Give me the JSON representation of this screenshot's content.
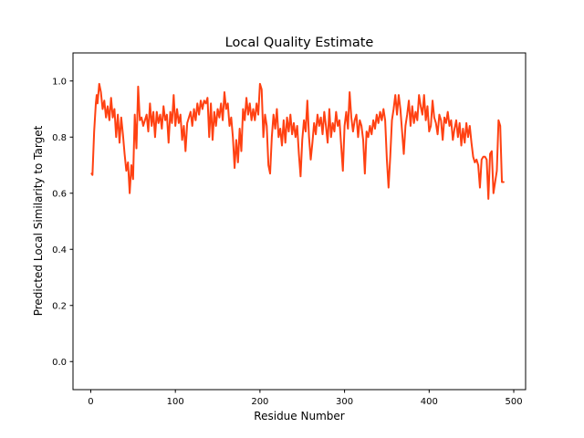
{
  "chart_data": {
    "type": "line",
    "title": "Local Quality Estimate",
    "xlabel": "Residue Number",
    "ylabel": "Predicted Local Similarity to Target",
    "xlim": [
      -21,
      514
    ],
    "ylim": [
      -0.1,
      1.1
    ],
    "xticks": [
      0,
      100,
      200,
      300,
      400,
      500
    ],
    "yticks": [
      0.0,
      0.2,
      0.4,
      0.6,
      0.8,
      1.0
    ],
    "xtick_labels": [
      "0",
      "100",
      "200",
      "300",
      "400",
      "500"
    ],
    "ytick_labels": [
      "0.0",
      "0.2",
      "0.4",
      "0.6",
      "0.8",
      "1.0"
    ],
    "grid": false,
    "series": [
      {
        "color": "#ff4112",
        "points": [
          [
            1,
            0.67
          ],
          [
            2,
            0.665
          ],
          [
            4,
            0.82
          ],
          [
            6,
            0.92
          ],
          [
            7,
            0.95
          ],
          [
            8,
            0.92
          ],
          [
            10,
            0.99
          ],
          [
            12,
            0.96
          ],
          [
            14,
            0.9
          ],
          [
            16,
            0.93
          ],
          [
            18,
            0.87
          ],
          [
            20,
            0.91
          ],
          [
            22,
            0.86
          ],
          [
            24,
            0.94
          ],
          [
            26,
            0.87
          ],
          [
            28,
            0.9
          ],
          [
            30,
            0.8
          ],
          [
            32,
            0.88
          ],
          [
            34,
            0.78
          ],
          [
            36,
            0.87
          ],
          [
            38,
            0.81
          ],
          [
            40,
            0.74
          ],
          [
            42,
            0.68
          ],
          [
            44,
            0.71
          ],
          [
            46,
            0.6
          ],
          [
            48,
            0.7
          ],
          [
            50,
            0.65
          ],
          [
            52,
            0.88
          ],
          [
            54,
            0.76
          ],
          [
            56,
            0.98
          ],
          [
            58,
            0.86
          ],
          [
            60,
            0.87
          ],
          [
            62,
            0.84
          ],
          [
            64,
            0.86
          ],
          [
            66,
            0.88
          ],
          [
            68,
            0.82
          ],
          [
            70,
            0.92
          ],
          [
            72,
            0.84
          ],
          [
            74,
            0.89
          ],
          [
            76,
            0.8
          ],
          [
            78,
            0.89
          ],
          [
            80,
            0.85
          ],
          [
            82,
            0.88
          ],
          [
            84,
            0.83
          ],
          [
            86,
            0.91
          ],
          [
            88,
            0.86
          ],
          [
            90,
            0.88
          ],
          [
            92,
            0.78
          ],
          [
            94,
            0.89
          ],
          [
            96,
            0.85
          ],
          [
            98,
            0.95
          ],
          [
            100,
            0.84
          ],
          [
            102,
            0.9
          ],
          [
            104,
            0.85
          ],
          [
            106,
            0.88
          ],
          [
            108,
            0.79
          ],
          [
            110,
            0.84
          ],
          [
            112,
            0.75
          ],
          [
            114,
            0.85
          ],
          [
            116,
            0.87
          ],
          [
            118,
            0.89
          ],
          [
            120,
            0.84
          ],
          [
            122,
            0.9
          ],
          [
            124,
            0.86
          ],
          [
            126,
            0.92
          ],
          [
            128,
            0.88
          ],
          [
            130,
            0.93
          ],
          [
            132,
            0.9
          ],
          [
            134,
            0.93
          ],
          [
            136,
            0.92
          ],
          [
            138,
            0.94
          ],
          [
            140,
            0.8
          ],
          [
            142,
            0.92
          ],
          [
            144,
            0.79
          ],
          [
            146,
            0.89
          ],
          [
            148,
            0.84
          ],
          [
            150,
            0.9
          ],
          [
            152,
            0.87
          ],
          [
            154,
            0.92
          ],
          [
            156,
            0.86
          ],
          [
            158,
            0.96
          ],
          [
            160,
            0.9
          ],
          [
            162,
            0.92
          ],
          [
            164,
            0.84
          ],
          [
            166,
            0.87
          ],
          [
            168,
            0.8
          ],
          [
            170,
            0.69
          ],
          [
            172,
            0.79
          ],
          [
            174,
            0.71
          ],
          [
            176,
            0.83
          ],
          [
            178,
            0.75
          ],
          [
            180,
            0.9
          ],
          [
            182,
            0.86
          ],
          [
            184,
            0.94
          ],
          [
            186,
            0.88
          ],
          [
            188,
            0.92
          ],
          [
            190,
            0.86
          ],
          [
            192,
            0.9
          ],
          [
            194,
            0.86
          ],
          [
            196,
            0.92
          ],
          [
            198,
            0.88
          ],
          [
            200,
            0.99
          ],
          [
            202,
            0.97
          ],
          [
            204,
            0.8
          ],
          [
            206,
            0.88
          ],
          [
            208,
            0.84
          ],
          [
            210,
            0.7
          ],
          [
            212,
            0.67
          ],
          [
            214,
            0.8
          ],
          [
            216,
            0.88
          ],
          [
            218,
            0.83
          ],
          [
            220,
            0.9
          ],
          [
            222,
            0.8
          ],
          [
            224,
            0.83
          ],
          [
            226,
            0.77
          ],
          [
            228,
            0.86
          ],
          [
            230,
            0.78
          ],
          [
            232,
            0.87
          ],
          [
            234,
            0.82
          ],
          [
            236,
            0.88
          ],
          [
            238,
            0.81
          ],
          [
            240,
            0.85
          ],
          [
            242,
            0.8
          ],
          [
            244,
            0.84
          ],
          [
            246,
            0.74
          ],
          [
            248,
            0.66
          ],
          [
            250,
            0.79
          ],
          [
            252,
            0.86
          ],
          [
            254,
            0.82
          ],
          [
            256,
            0.93
          ],
          [
            258,
            0.8
          ],
          [
            260,
            0.72
          ],
          [
            262,
            0.78
          ],
          [
            264,
            0.85
          ],
          [
            266,
            0.81
          ],
          [
            268,
            0.88
          ],
          [
            270,
            0.84
          ],
          [
            272,
            0.87
          ],
          [
            274,
            0.81
          ],
          [
            276,
            0.89
          ],
          [
            278,
            0.84
          ],
          [
            280,
            0.78
          ],
          [
            282,
            0.9
          ],
          [
            284,
            0.8
          ],
          [
            286,
            0.85
          ],
          [
            288,
            0.82
          ],
          [
            290,
            0.89
          ],
          [
            292,
            0.84
          ],
          [
            294,
            0.86
          ],
          [
            296,
            0.77
          ],
          [
            298,
            0.68
          ],
          [
            300,
            0.84
          ],
          [
            302,
            0.89
          ],
          [
            304,
            0.83
          ],
          [
            306,
            0.96
          ],
          [
            308,
            0.87
          ],
          [
            310,
            0.82
          ],
          [
            312,
            0.86
          ],
          [
            314,
            0.88
          ],
          [
            316,
            0.8
          ],
          [
            318,
            0.86
          ],
          [
            320,
            0.84
          ],
          [
            322,
            0.79
          ],
          [
            324,
            0.67
          ],
          [
            326,
            0.82
          ],
          [
            328,
            0.8
          ],
          [
            330,
            0.84
          ],
          [
            332,
            0.81
          ],
          [
            334,
            0.86
          ],
          [
            336,
            0.83
          ],
          [
            338,
            0.88
          ],
          [
            340,
            0.85
          ],
          [
            342,
            0.89
          ],
          [
            344,
            0.86
          ],
          [
            346,
            0.9
          ],
          [
            348,
            0.86
          ],
          [
            350,
            0.72
          ],
          [
            352,
            0.62
          ],
          [
            354,
            0.73
          ],
          [
            356,
            0.86
          ],
          [
            358,
            0.9
          ],
          [
            360,
            0.95
          ],
          [
            362,
            0.88
          ],
          [
            364,
            0.95
          ],
          [
            366,
            0.9
          ],
          [
            368,
            0.82
          ],
          [
            370,
            0.74
          ],
          [
            372,
            0.84
          ],
          [
            374,
            0.88
          ],
          [
            376,
            0.93
          ],
          [
            378,
            0.84
          ],
          [
            380,
            0.91
          ],
          [
            382,
            0.85
          ],
          [
            384,
            0.89
          ],
          [
            386,
            0.86
          ],
          [
            388,
            0.95
          ],
          [
            390,
            0.91
          ],
          [
            392,
            0.88
          ],
          [
            394,
            0.95
          ],
          [
            396,
            0.86
          ],
          [
            398,
            0.91
          ],
          [
            400,
            0.82
          ],
          [
            402,
            0.84
          ],
          [
            404,
            0.93
          ],
          [
            406,
            0.87
          ],
          [
            408,
            0.85
          ],
          [
            410,
            0.81
          ],
          [
            412,
            0.88
          ],
          [
            414,
            0.86
          ],
          [
            416,
            0.79
          ],
          [
            418,
            0.87
          ],
          [
            420,
            0.85
          ],
          [
            422,
            0.89
          ],
          [
            424,
            0.84
          ],
          [
            426,
            0.86
          ],
          [
            428,
            0.79
          ],
          [
            430,
            0.83
          ],
          [
            432,
            0.86
          ],
          [
            434,
            0.8
          ],
          [
            436,
            0.85
          ],
          [
            438,
            0.77
          ],
          [
            440,
            0.83
          ],
          [
            442,
            0.78
          ],
          [
            444,
            0.85
          ],
          [
            446,
            0.8
          ],
          [
            448,
            0.84
          ],
          [
            450,
            0.78
          ],
          [
            452,
            0.73
          ],
          [
            454,
            0.71
          ],
          [
            456,
            0.72
          ],
          [
            458,
            0.7
          ],
          [
            460,
            0.62
          ],
          [
            462,
            0.72
          ],
          [
            464,
            0.73
          ],
          [
            466,
            0.73
          ],
          [
            468,
            0.72
          ],
          [
            470,
            0.58
          ],
          [
            472,
            0.74
          ],
          [
            474,
            0.75
          ],
          [
            476,
            0.6
          ],
          [
            478,
            0.64
          ],
          [
            480,
            0.68
          ],
          [
            482,
            0.86
          ],
          [
            484,
            0.84
          ],
          [
            486,
            0.64
          ],
          [
            488,
            0.64
          ]
        ]
      }
    ]
  }
}
